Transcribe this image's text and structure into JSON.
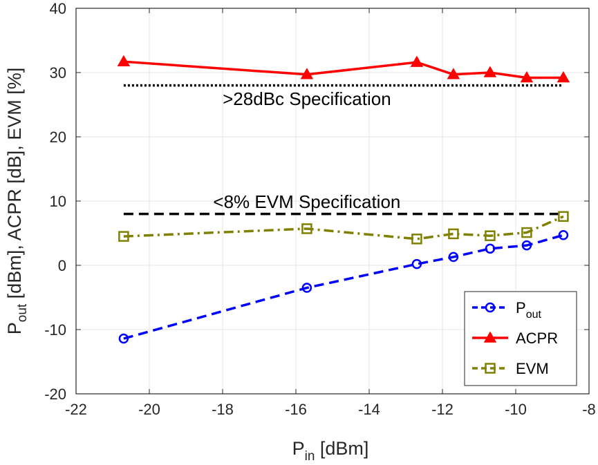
{
  "chart_data": {
    "type": "line",
    "xlabel": {
      "main": "P",
      "sub": "in",
      "rest": " [dBm]"
    },
    "ylabel": {
      "main": "P",
      "sub": "out",
      "rest": " [dBm], ACPR [dB], EVM [%]"
    },
    "xlim": [
      -22,
      -8
    ],
    "ylim": [
      -20,
      40
    ],
    "xticks": [
      -22,
      -20,
      -18,
      -16,
      -14,
      -12,
      -10,
      -8
    ],
    "yticks": [
      -20,
      -10,
      0,
      10,
      20,
      30,
      40
    ],
    "grid": true,
    "legend_position": "bottom-right",
    "series": [
      {
        "name": "P",
        "name_sub": "out",
        "color": "#0000ff",
        "line": "dashed",
        "marker": "circle",
        "x": [
          -20.7,
          -15.7,
          -12.7,
          -11.7,
          -10.7,
          -9.7,
          -8.7
        ],
        "y": [
          -11.4,
          -3.5,
          0.2,
          1.3,
          2.6,
          3.1,
          4.7
        ]
      },
      {
        "name": "ACPR",
        "color": "#ff0000",
        "line": "solid",
        "marker": "triangle",
        "x": [
          -20.7,
          -15.7,
          -12.7,
          -11.7,
          -10.7,
          -9.7,
          -8.7
        ],
        "y": [
          31.7,
          29.7,
          31.6,
          29.7,
          30.0,
          29.2,
          29.2
        ]
      },
      {
        "name": "EVM",
        "color": "#808000",
        "line": "dashdot",
        "marker": "square",
        "x": [
          -20.7,
          -15.7,
          -12.7,
          -11.7,
          -10.7,
          -9.7,
          -8.7
        ],
        "y": [
          4.5,
          5.7,
          4.1,
          4.9,
          4.6,
          5.1,
          7.6
        ]
      }
    ],
    "reference_lines": [
      {
        "label": ">28dBc Specification",
        "y": 28,
        "x": [
          -20.7,
          -8.7
        ],
        "style": "dotted",
        "color": "#000000",
        "label_pos": [
          -15.7,
          25.9
        ]
      },
      {
        "label": "<8% EVM Specification",
        "y": 8,
        "x": [
          -20.7,
          -8.7
        ],
        "style": "dashed",
        "color": "#000000",
        "label_pos": [
          -15.7,
          9.9
        ]
      }
    ]
  }
}
